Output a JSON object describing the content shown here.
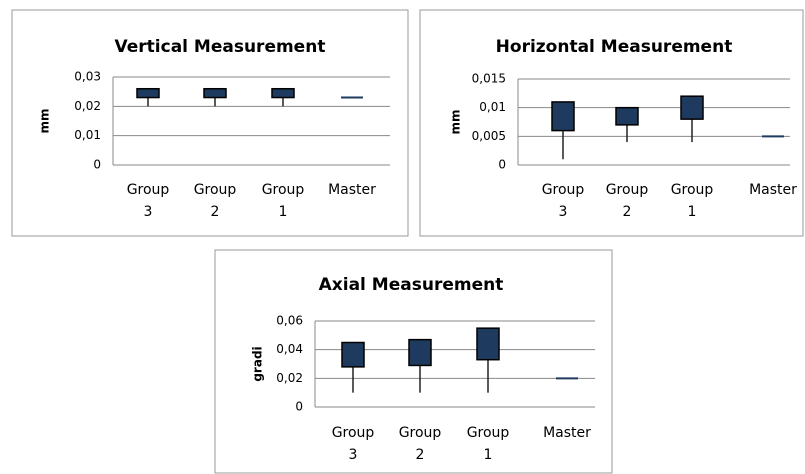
{
  "chart_data": [
    {
      "type": "box",
      "title": "Vertical Measurement",
      "y_label": "mm",
      "categories": [
        "Group 3",
        "Group 2",
        "Group 1",
        "Master"
      ],
      "low": [
        0.02,
        0.02,
        0.02,
        0.023
      ],
      "q1": [
        0.023,
        0.023,
        0.023,
        0.023
      ],
      "q3": [
        0.026,
        0.026,
        0.026,
        0.023
      ],
      "color": "#1e3a5f",
      "ylim": [
        0,
        0.03
      ],
      "yticks": [
        0,
        {
          "value": 0.01,
          "label": "0,01"
        },
        {
          "value": 0.02,
          "label": "0,02"
        },
        {
          "value": 0.03,
          "label": "0,03"
        }
      ],
      "grid": true
    },
    {
      "type": "box",
      "title": "Horizontal Measurement",
      "y_label": "mm",
      "categories": [
        "Group 3",
        "Group 2",
        "Group 1",
        "Master"
      ],
      "low": [
        0.001,
        0.004,
        0.004,
        0.005
      ],
      "q1": [
        0.006,
        0.007,
        0.008,
        0.005
      ],
      "q3": [
        0.011,
        0.01,
        0.012,
        0.005
      ],
      "color": "#1e3a5f",
      "ylim": [
        0,
        0.015
      ],
      "yticks": [
        0,
        {
          "value": 0.005,
          "label": "0,005"
        },
        {
          "value": 0.01,
          "label": "0,01"
        },
        {
          "value": 0.015,
          "label": "0,015"
        }
      ],
      "grid": true
    },
    {
      "type": "box",
      "title": "Axial Measurement",
      "y_label": "gradi",
      "categories": [
        "Group 3",
        "Group 2",
        "Group 1",
        "Master"
      ],
      "low": [
        0.01,
        0.01,
        0.01,
        0.02
      ],
      "q1": [
        0.028,
        0.029,
        0.033,
        0.02
      ],
      "q3": [
        0.045,
        0.047,
        0.055,
        0.02
      ],
      "color": "#1e3a5f",
      "ylim": [
        0,
        0.06
      ],
      "yticks": [
        0,
        {
          "value": 0.02,
          "label": "0,02"
        },
        {
          "value": 0.04,
          "label": "0,04"
        },
        {
          "value": 0.06,
          "label": "0,06"
        }
      ],
      "grid": true
    }
  ]
}
